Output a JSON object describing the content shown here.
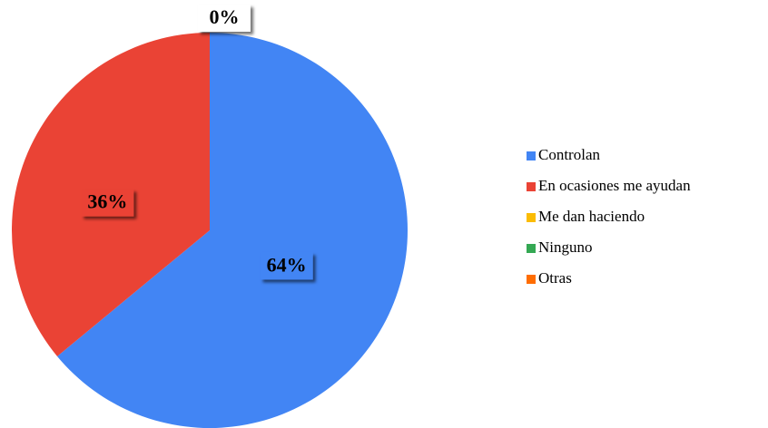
{
  "chart_data": {
    "type": "pie",
    "categories": [
      "Controlan",
      "En ocasiones me ayudan",
      "Me dan haciendo",
      "Ninguno",
      "Otras"
    ],
    "values": [
      64,
      36,
      0,
      0,
      0
    ],
    "value_labels": [
      "64%",
      "36%",
      "0%",
      null,
      null
    ],
    "colors": [
      "#4285f4",
      "#ea4335",
      "#fbbc04",
      "#34a853",
      "#ff6d01"
    ],
    "legend": "right"
  }
}
